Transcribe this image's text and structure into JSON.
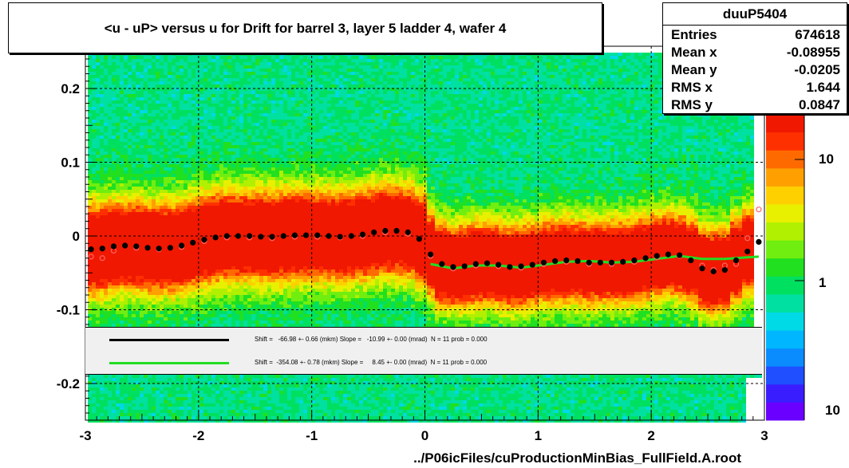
{
  "title": "<u - uP>       versus   u for Drift for barrel 3, layer 5 ladder 4, wafer 4",
  "stats": {
    "name": "duuP5404",
    "rows": [
      {
        "label": "Entries",
        "value": "674618"
      },
      {
        "label": "Mean x",
        "value": "-0.08955"
      },
      {
        "label": "Mean y",
        "value": "-0.0205"
      },
      {
        "label": "RMS x",
        "value": "1.644"
      },
      {
        "label": "RMS y",
        "value": "0.0847"
      }
    ]
  },
  "fits": [
    {
      "color": "#000000",
      "text": "Shift =   -66.98 +- 0.66 (mkm) Slope =   -10.99 +- 0.00 (mrad)  N = 11 prob = 0.000"
    },
    {
      "color": "#22dd22",
      "text": "Shift =  -354.08 +- 0.78 (mkm) Slope =     8.45 +- 0.00 (mrad)  N = 11 prob = 0.000"
    }
  ],
  "xlabel": "../P06icFiles/cuProductionMinBias_FullField.A.root",
  "colors": {
    "black_profile": "#000000",
    "green_fit": "#22dd22",
    "open_markers": "#ff6666"
  },
  "chart_data": {
    "type": "heatmap",
    "xlim": [
      -3,
      3
    ],
    "ylim": [
      -0.25,
      0.25
    ],
    "x_ticks": [
      "-3",
      "-2",
      "-1",
      "0",
      "1",
      "2",
      "3"
    ],
    "y_ticks": [
      "-0.2",
      "-0.1",
      "0",
      "0.1",
      "0.2"
    ],
    "z_ticks": [
      "10",
      "1",
      "10"
    ],
    "grid": true,
    "series": [
      {
        "marker": "filled-circle",
        "x": [
          -2.95,
          -2.85,
          -2.75,
          -2.65,
          -2.55,
          -2.45,
          -2.35,
          -2.25,
          -2.15,
          -2.05,
          -1.95,
          -1.85,
          -1.75,
          -1.65,
          -1.55,
          -1.45,
          -1.35,
          -1.25,
          -1.15,
          -1.05,
          -0.95,
          -0.85,
          -0.75,
          -0.65,
          -0.55,
          -0.45,
          -0.35,
          -0.25,
          -0.15,
          -0.05,
          0.05,
          0.15,
          0.25,
          0.35,
          0.45,
          0.55,
          0.65,
          0.75,
          0.85,
          0.95,
          1.05,
          1.15,
          1.25,
          1.35,
          1.45,
          1.55,
          1.65,
          1.75,
          1.85,
          1.95,
          2.05,
          2.15,
          2.25,
          2.35,
          2.45,
          2.55,
          2.65,
          2.75,
          2.85,
          2.95
        ],
        "y": [
          -0.018,
          -0.017,
          -0.014,
          -0.013,
          -0.014,
          -0.016,
          -0.017,
          -0.016,
          -0.013,
          -0.009,
          -0.005,
          -0.002,
          0.0,
          0.0,
          0.0,
          -0.001,
          -0.001,
          0.0,
          0.001,
          0.001,
          0.001,
          0.0,
          -0.001,
          0.0,
          0.002,
          0.005,
          0.007,
          0.007,
          0.005,
          -0.004,
          -0.025,
          -0.038,
          -0.042,
          -0.041,
          -0.038,
          -0.037,
          -0.039,
          -0.042,
          -0.041,
          -0.039,
          -0.036,
          -0.034,
          -0.033,
          -0.034,
          -0.036,
          -0.036,
          -0.036,
          -0.035,
          -0.033,
          -0.03,
          -0.027,
          -0.025,
          -0.026,
          -0.033,
          -0.044,
          -0.048,
          -0.046,
          -0.033,
          -0.021,
          -0.008
        ]
      },
      {
        "marker": "open-circle",
        "x": [
          -2.95,
          -2.85,
          -2.75,
          -2.55,
          -2.35,
          -2.15,
          -1.95,
          -1.75,
          -1.55,
          -1.35,
          -1.15,
          -0.95,
          -0.75,
          -0.55,
          -0.35,
          -0.15,
          0.05,
          0.25,
          0.45,
          0.65,
          0.85,
          1.05,
          1.25,
          1.45,
          1.65,
          1.85,
          2.05,
          2.25,
          2.45,
          2.55,
          2.65,
          2.75,
          2.85,
          2.95
        ],
        "y": [
          -0.028,
          -0.03,
          -0.02,
          -0.016,
          -0.018,
          -0.015,
          -0.007,
          -0.002,
          -0.002,
          -0.003,
          -0.001,
          -0.001,
          -0.002,
          0.0,
          0.005,
          0.003,
          -0.027,
          -0.044,
          -0.04,
          -0.041,
          -0.043,
          -0.038,
          -0.035,
          -0.038,
          -0.038,
          -0.035,
          -0.029,
          -0.027,
          -0.04,
          -0.046,
          -0.04,
          -0.038,
          -0.003,
          0.036
        ]
      },
      {
        "marker": "line",
        "x": [
          0.05,
          0.25,
          0.45,
          0.65,
          0.85,
          1.05,
          1.25,
          1.45,
          1.65,
          1.85,
          2.05,
          2.25,
          2.45,
          2.65,
          2.85,
          2.95
        ],
        "y": [
          -0.038,
          -0.044,
          -0.04,
          -0.04,
          -0.043,
          -0.039,
          -0.035,
          -0.034,
          -0.036,
          -0.035,
          -0.031,
          -0.027,
          -0.031,
          -0.031,
          -0.029,
          -0.028
        ]
      }
    ]
  }
}
